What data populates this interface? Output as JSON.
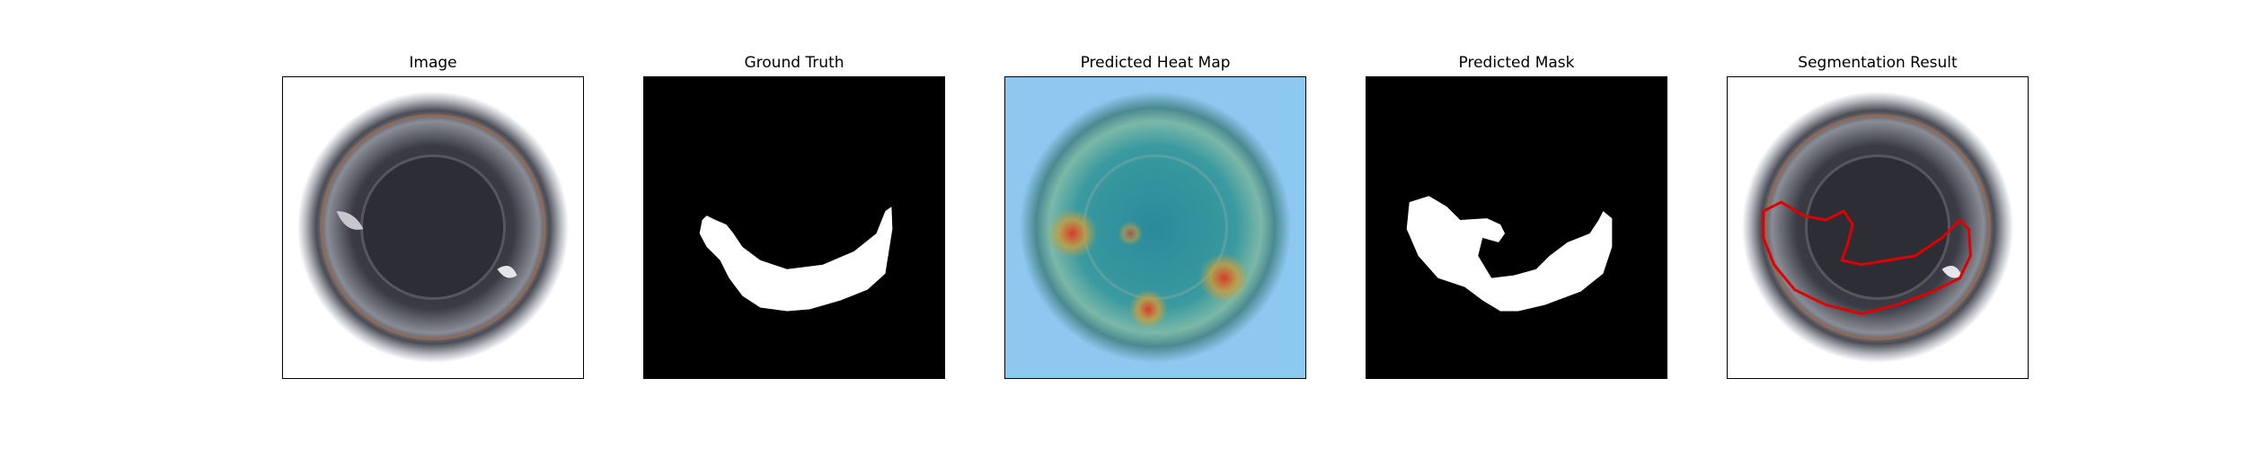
{
  "figure": {
    "panels": [
      {
        "title": "Image"
      },
      {
        "title": "Ground Truth"
      },
      {
        "title": "Predicted Heat Map"
      },
      {
        "title": "Predicted Mask"
      },
      {
        "title": "Segmentation Result"
      }
    ]
  },
  "colors": {
    "background": "#ffffff",
    "mask_background": "#000000",
    "mask_foreground": "#ffffff",
    "contour": "#e00000",
    "heat_low": "#8cc8f0",
    "heat_high": "#d83a2a"
  }
}
